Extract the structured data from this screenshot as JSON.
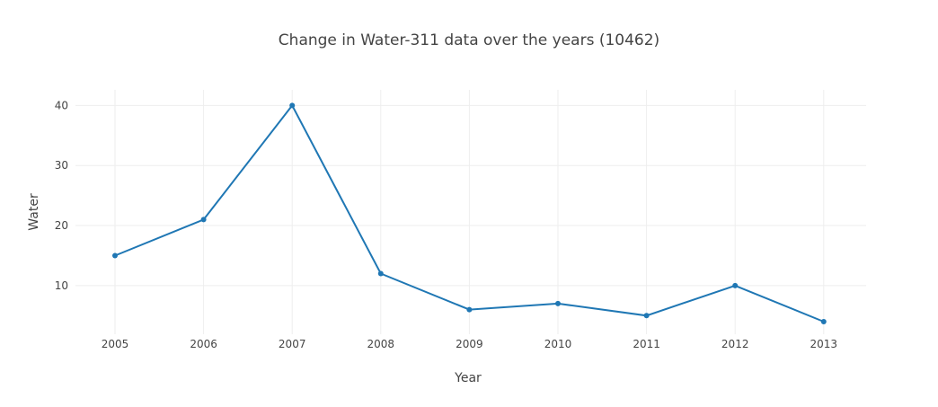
{
  "chart_data": {
    "type": "line",
    "title": "Change in Water-311 data over the years (10462)",
    "xlabel": "Year",
    "ylabel": "Water",
    "x": [
      "2005",
      "2006",
      "2007",
      "2008",
      "2009",
      "2010",
      "2011",
      "2012",
      "2013"
    ],
    "series": [
      {
        "values": [
          15,
          21,
          40,
          12,
          6,
          7,
          5,
          10,
          4
        ]
      }
    ],
    "yticks": [
      "10",
      "20",
      "30",
      "40"
    ],
    "ylim": [
      1.9,
      42.6
    ],
    "grid": true,
    "colors": {
      "line": "#1f77b4",
      "grid": "#eeeeee",
      "text": "#444444"
    }
  }
}
